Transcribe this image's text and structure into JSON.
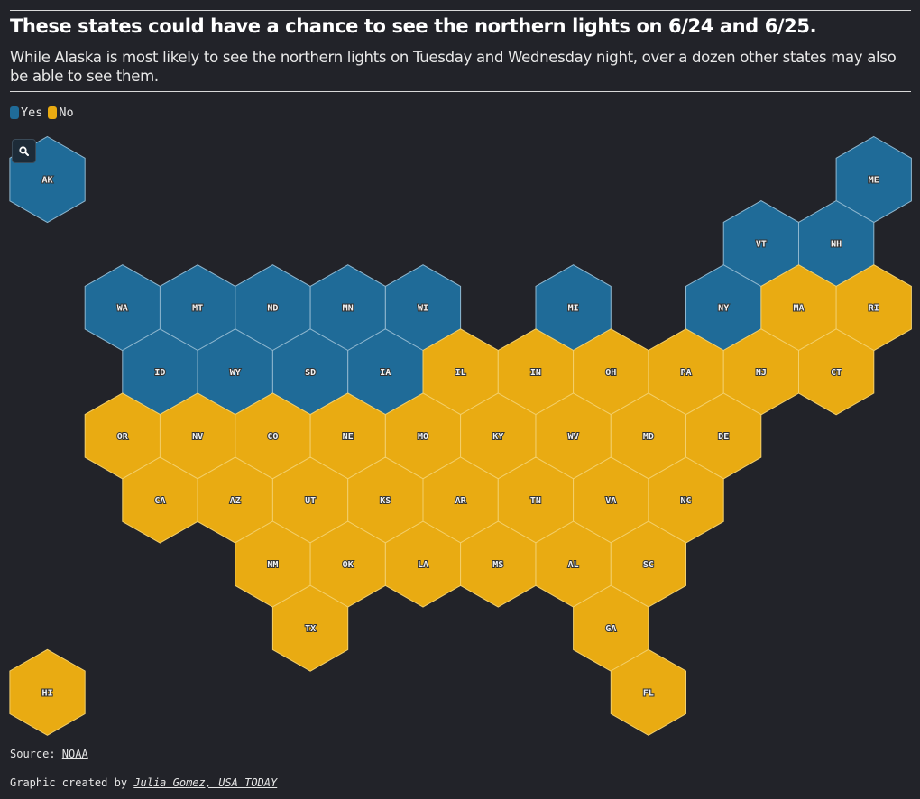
{
  "header": {
    "title": "These states could have a chance to see the northern lights on 6/24 and 6/25.",
    "subtitle": "While Alaska is most likely to see the northern lights on Tuesday and Wednesday night, over a dozen other states may also be able to see them."
  },
  "legend": {
    "items": [
      {
        "label": "Yes",
        "color": "#1f6b98"
      },
      {
        "label": "No",
        "color": "#e9ab12"
      }
    ]
  },
  "zoom": {
    "icon": "search-icon"
  },
  "chart_data": {
    "type": "hex tile map",
    "categories": [
      "Yes",
      "No"
    ],
    "colors": {
      "Yes": "#1f6b98",
      "No": "#e9ab12"
    },
    "states": [
      {
        "abbr": "AK",
        "value": "Yes",
        "row": 0,
        "col": 0
      },
      {
        "abbr": "ME",
        "value": "Yes",
        "row": 0,
        "col": 11
      },
      {
        "abbr": "VT",
        "value": "Yes",
        "row": 1,
        "col": 9.5
      },
      {
        "abbr": "NH",
        "value": "Yes",
        "row": 1,
        "col": 10.5
      },
      {
        "abbr": "WA",
        "value": "Yes",
        "row": 2,
        "col": 1
      },
      {
        "abbr": "MT",
        "value": "Yes",
        "row": 2,
        "col": 2
      },
      {
        "abbr": "ND",
        "value": "Yes",
        "row": 2,
        "col": 3
      },
      {
        "abbr": "MN",
        "value": "Yes",
        "row": 2,
        "col": 4
      },
      {
        "abbr": "WI",
        "value": "Yes",
        "row": 2,
        "col": 5
      },
      {
        "abbr": "MI",
        "value": "Yes",
        "row": 2,
        "col": 7
      },
      {
        "abbr": "NY",
        "value": "Yes",
        "row": 2,
        "col": 9
      },
      {
        "abbr": "MA",
        "value": "No",
        "row": 2,
        "col": 10
      },
      {
        "abbr": "RI",
        "value": "No",
        "row": 2,
        "col": 11
      },
      {
        "abbr": "ID",
        "value": "Yes",
        "row": 3,
        "col": 1.5
      },
      {
        "abbr": "WY",
        "value": "Yes",
        "row": 3,
        "col": 2.5
      },
      {
        "abbr": "SD",
        "value": "Yes",
        "row": 3,
        "col": 3.5
      },
      {
        "abbr": "IA",
        "value": "Yes",
        "row": 3,
        "col": 4.5
      },
      {
        "abbr": "IL",
        "value": "No",
        "row": 3,
        "col": 5.5
      },
      {
        "abbr": "IN",
        "value": "No",
        "row": 3,
        "col": 6.5
      },
      {
        "abbr": "OH",
        "value": "No",
        "row": 3,
        "col": 7.5
      },
      {
        "abbr": "PA",
        "value": "No",
        "row": 3,
        "col": 8.5
      },
      {
        "abbr": "NJ",
        "value": "No",
        "row": 3,
        "col": 9.5
      },
      {
        "abbr": "CT",
        "value": "No",
        "row": 3,
        "col": 10.5
      },
      {
        "abbr": "OR",
        "value": "No",
        "row": 4,
        "col": 1
      },
      {
        "abbr": "NV",
        "value": "No",
        "row": 4,
        "col": 2
      },
      {
        "abbr": "CO",
        "value": "No",
        "row": 4,
        "col": 3
      },
      {
        "abbr": "NE",
        "value": "No",
        "row": 4,
        "col": 4
      },
      {
        "abbr": "MO",
        "value": "No",
        "row": 4,
        "col": 5
      },
      {
        "abbr": "KY",
        "value": "No",
        "row": 4,
        "col": 6
      },
      {
        "abbr": "WV",
        "value": "No",
        "row": 4,
        "col": 7
      },
      {
        "abbr": "MD",
        "value": "No",
        "row": 4,
        "col": 8
      },
      {
        "abbr": "DE",
        "value": "No",
        "row": 4,
        "col": 9
      },
      {
        "abbr": "CA",
        "value": "No",
        "row": 5,
        "col": 1.5
      },
      {
        "abbr": "AZ",
        "value": "No",
        "row": 5,
        "col": 2.5
      },
      {
        "abbr": "UT",
        "value": "No",
        "row": 5,
        "col": 3.5
      },
      {
        "abbr": "KS",
        "value": "No",
        "row": 5,
        "col": 4.5
      },
      {
        "abbr": "AR",
        "value": "No",
        "row": 5,
        "col": 5.5
      },
      {
        "abbr": "TN",
        "value": "No",
        "row": 5,
        "col": 6.5
      },
      {
        "abbr": "VA",
        "value": "No",
        "row": 5,
        "col": 7.5
      },
      {
        "abbr": "NC",
        "value": "No",
        "row": 5,
        "col": 8.5
      },
      {
        "abbr": "NM",
        "value": "No",
        "row": 6,
        "col": 3
      },
      {
        "abbr": "OK",
        "value": "No",
        "row": 6,
        "col": 4
      },
      {
        "abbr": "LA",
        "value": "No",
        "row": 6,
        "col": 5
      },
      {
        "abbr": "MS",
        "value": "No",
        "row": 6,
        "col": 6
      },
      {
        "abbr": "AL",
        "value": "No",
        "row": 6,
        "col": 7
      },
      {
        "abbr": "SC",
        "value": "No",
        "row": 6,
        "col": 8
      },
      {
        "abbr": "TX",
        "value": "No",
        "row": 7,
        "col": 3.5
      },
      {
        "abbr": "GA",
        "value": "No",
        "row": 7,
        "col": 7.5
      },
      {
        "abbr": "HI",
        "value": "No",
        "row": 8,
        "col": 0
      },
      {
        "abbr": "FL",
        "value": "No",
        "row": 8,
        "col": 8
      }
    ]
  },
  "footer": {
    "source_prefix": "Source: ",
    "source_link": "NOAA",
    "credit_prefix": "Graphic created by ",
    "credit_link": "Julia Gomez, USA TODAY"
  }
}
